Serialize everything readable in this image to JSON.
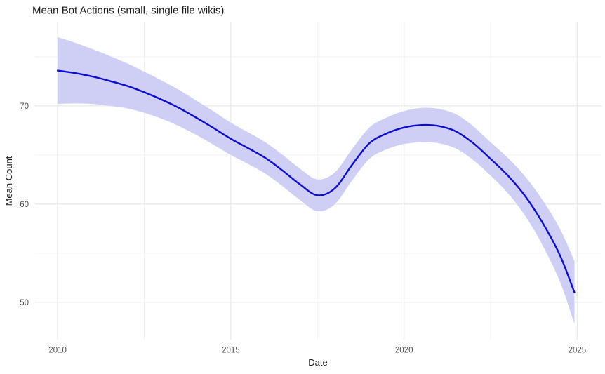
{
  "title": "Mean Bot Actions (small, single file wikis)",
  "colors": {
    "background": "#ffffff",
    "grid_major": "#e9e9e9",
    "grid_minor": "#f2f2f2",
    "line": "#0d0dd1",
    "band": "#cfcff6",
    "tick_label": "#4d4d4d",
    "text": "#1a1a1a"
  },
  "chart_data": {
    "type": "line",
    "title": "Mean Bot Actions (small, single file wikis)",
    "xlabel": "Date",
    "ylabel": "Mean Count",
    "grid": true,
    "legend": "none",
    "xlim": [
      2009.33,
      2025.7
    ],
    "ylim": [
      46.2,
      78.5
    ],
    "x_major_ticks": [
      2010,
      2015,
      2020,
      2025
    ],
    "x_tick_labels": [
      "2010",
      "2015",
      "2020",
      "2025"
    ],
    "x_minor_gridlines": [
      2012.5,
      2017.5,
      2022.5
    ],
    "y_major_ticks": [
      50,
      60,
      70
    ],
    "y_tick_labels": [
      "50",
      "60",
      "70"
    ],
    "y_minor_gridlines": [
      55,
      65,
      75
    ],
    "series": [
      {
        "name": "mean-bot-actions-smooth",
        "style": "smooth-line-with-confidence-band",
        "x": [
          2010,
          2010.5,
          2011,
          2011.5,
          2012,
          2012.5,
          2013,
          2013.5,
          2014,
          2014.5,
          2015,
          2015.5,
          2016,
          2016.5,
          2017,
          2017.5,
          2018,
          2018.5,
          2019,
          2019.5,
          2020,
          2020.5,
          2021,
          2021.5,
          2022,
          2022.5,
          2023,
          2023.5,
          2024,
          2024.5,
          2024.92
        ],
        "y": [
          73.6,
          73.35,
          73.0,
          72.55,
          72.05,
          71.4,
          70.65,
          69.8,
          68.8,
          67.75,
          66.65,
          65.7,
          64.7,
          63.4,
          62.0,
          60.9,
          61.6,
          64.0,
          66.2,
          67.2,
          67.8,
          68.05,
          67.95,
          67.4,
          66.2,
          64.6,
          62.9,
          60.8,
          58.1,
          54.8,
          51.0
        ],
        "band_lower": [
          70.2,
          70.25,
          70.2,
          70.0,
          69.75,
          69.3,
          68.7,
          67.95,
          67.05,
          66.05,
          65.0,
          64.08,
          63.1,
          61.8,
          60.4,
          59.28,
          59.98,
          62.4,
          64.6,
          65.58,
          66.12,
          66.3,
          66.2,
          65.65,
          64.48,
          62.9,
          61.1,
          58.8,
          55.8,
          52.1,
          47.8
        ],
        "band_upper": [
          77.0,
          76.45,
          75.8,
          75.1,
          74.35,
          73.5,
          72.6,
          71.65,
          70.55,
          69.45,
          68.3,
          67.32,
          66.3,
          65.0,
          63.6,
          62.52,
          63.22,
          65.6,
          67.8,
          68.82,
          69.48,
          69.8,
          69.7,
          69.15,
          67.92,
          66.3,
          64.7,
          62.8,
          60.4,
          57.5,
          54.2
        ]
      }
    ]
  }
}
